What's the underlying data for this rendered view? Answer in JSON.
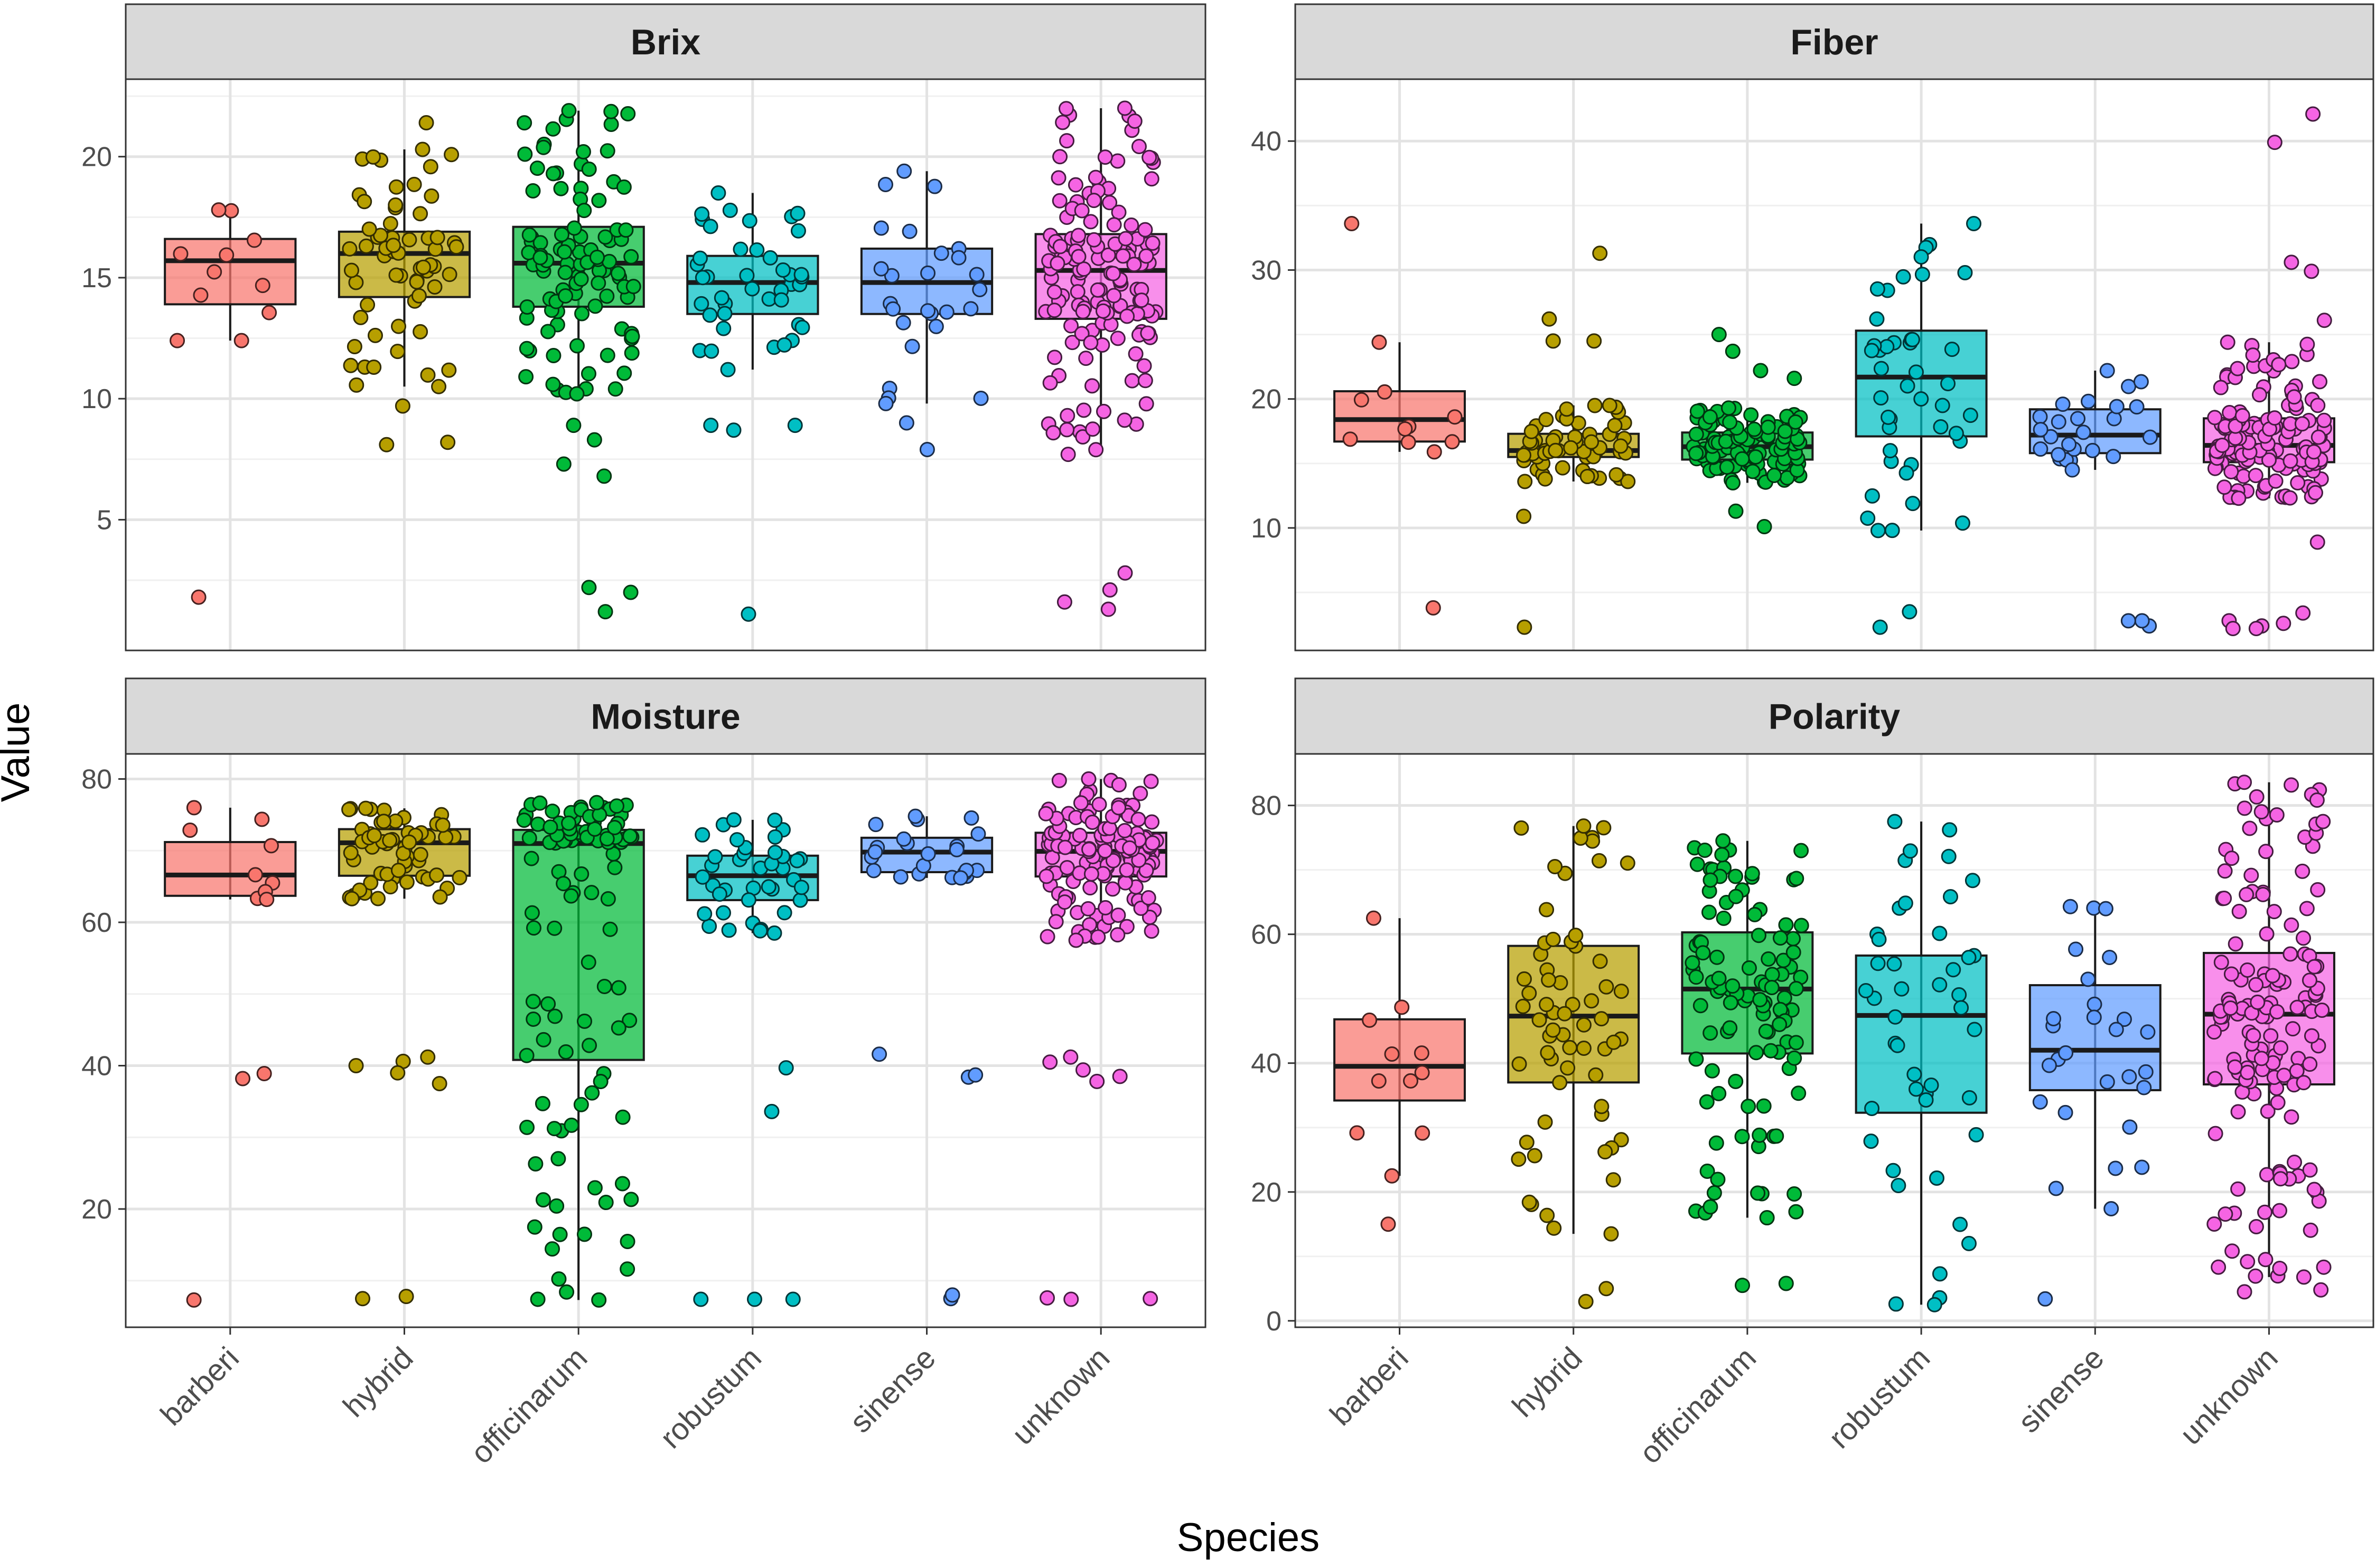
{
  "chart_data": {
    "type": "box",
    "title": "",
    "xlabel": "Species",
    "ylabel": "Value",
    "categories": [
      "barberi",
      "hybrid",
      "officinarum",
      "robustum",
      "sinense",
      "unknown"
    ],
    "colors": {
      "barberi": "#F8766D",
      "hybrid": "#B79F00",
      "officinarum": "#00BA38",
      "robustum": "#00BFC4",
      "sinense": "#619CFF",
      "unknown": "#F564E3"
    },
    "panels": [
      {
        "name": "Brix",
        "ylim": [
          -0.4,
          23.2
        ],
        "yticks": [
          5,
          10,
          15,
          20
        ],
        "stats": {
          "barberi": {
            "q1": 13.9,
            "median": 15.7,
            "q3": 16.6,
            "whisker_low": 12.4,
            "whisker_high": 17.8,
            "n": 12,
            "outliers": [
              1.8
            ]
          },
          "hybrid": {
            "q1": 14.2,
            "median": 16.0,
            "q3": 16.9,
            "whisker_low": 10.5,
            "whisker_high": 20.3,
            "n": 65,
            "outliers": [
              9.7,
              8.1,
              8.2,
              21.4
            ]
          },
          "officinarum": {
            "q1": 13.8,
            "median": 15.6,
            "q3": 17.1,
            "whisker_low": 10.2,
            "whisker_high": 21.9,
            "n": 110,
            "outliers": [
              8.3,
              7.3,
              8.9,
              6.8,
              2.2,
              2.0,
              1.2
            ]
          },
          "robustum": {
            "q1": 13.5,
            "median": 14.8,
            "q3": 15.9,
            "whisker_low": 11.2,
            "whisker_high": 18.5,
            "n": 45,
            "outliers": [
              8.9,
              8.9,
              8.7,
              1.1
            ]
          },
          "sinense": {
            "q1": 13.5,
            "median": 14.8,
            "q3": 16.2,
            "whisker_low": 9.8,
            "whisker_high": 19.4,
            "n": 28,
            "outliers": [
              9.0,
              7.9
            ]
          },
          "unknown": {
            "q1": 13.3,
            "median": 15.3,
            "q3": 16.8,
            "whisker_low": 7.7,
            "whisker_high": 22.0,
            "n": 150,
            "outliers": [
              2.8,
              2.1,
              1.6,
              1.3
            ]
          }
        }
      },
      {
        "name": "Fiber",
        "ylim": [
          0.5,
          44.8
        ],
        "yticks": [
          10,
          20,
          30,
          40
        ],
        "stats": {
          "barberi": {
            "q1": 16.7,
            "median": 18.4,
            "q3": 20.6,
            "whisker_low": 15.9,
            "whisker_high": 24.4,
            "n": 12,
            "outliers": [
              33.6,
              3.8
            ]
          },
          "hybrid": {
            "q1": 15.5,
            "median": 16.0,
            "q3": 17.3,
            "whisker_low": 13.6,
            "whisker_high": 19.5,
            "n": 65,
            "outliers": [
              31.3,
              26.2,
              24.5,
              24.5,
              10.9,
              2.3
            ]
          },
          "officinarum": {
            "q1": 15.3,
            "median": 16.3,
            "q3": 17.4,
            "whisker_low": 13.5,
            "whisker_high": 19.3,
            "n": 110,
            "outliers": [
              25.0,
              23.7,
              22.2,
              21.6,
              10.1,
              11.3
            ]
          },
          "robustum": {
            "q1": 17.1,
            "median": 21.7,
            "q3": 25.3,
            "whisker_low": 9.8,
            "whisker_high": 33.6,
            "n": 45,
            "outliers": [
              2.3,
              3.5
            ]
          },
          "sinense": {
            "q1": 15.8,
            "median": 17.2,
            "q3": 19.2,
            "whisker_low": 14.5,
            "whisker_high": 22.2,
            "n": 28,
            "outliers": [
              2.4,
              2.8,
              2.8
            ]
          },
          "unknown": {
            "q1": 15.1,
            "median": 16.4,
            "q3": 18.5,
            "whisker_low": 12.3,
            "whisker_high": 24.4,
            "n": 150,
            "outliers": [
              42.1,
              39.9,
              30.6,
              29.9,
              26.1,
              8.9,
              3.4,
              2.8,
              2.6,
              2.4,
              2.2,
              2.2
            ]
          }
        }
      },
      {
        "name": "Moisture",
        "ylim": [
          3.5,
          83.5
        ],
        "yticks": [
          20,
          40,
          60,
          80
        ],
        "stats": {
          "barberi": {
            "q1": 63.7,
            "median": 66.6,
            "q3": 71.2,
            "whisker_low": 63.2,
            "whisker_high": 76.0,
            "n": 12,
            "outliers": [
              38.9,
              38.2,
              7.3
            ]
          },
          "hybrid": {
            "q1": 66.5,
            "median": 71.1,
            "q3": 73.0,
            "whisker_low": 63.3,
            "whisker_high": 75.9,
            "n": 65,
            "outliers": [
              41.2,
              40.6,
              40.0,
              39.0,
              37.5,
              7.5,
              7.8
            ]
          },
          "officinarum": {
            "q1": 40.8,
            "median": 71.0,
            "q3": 72.9,
            "whisker_low": 7.3,
            "whisker_high": 76.7,
            "n": 110,
            "outliers": []
          },
          "robustum": {
            "q1": 63.1,
            "median": 66.5,
            "q3": 69.3,
            "whisker_low": 58.5,
            "whisker_high": 74.3,
            "n": 45,
            "outliers": [
              39.7,
              33.6,
              7.4,
              7.4,
              7.4
            ]
          },
          "sinense": {
            "q1": 67.0,
            "median": 69.8,
            "q3": 71.8,
            "whisker_low": 66.2,
            "whisker_high": 74.8,
            "n": 28,
            "outliers": [
              41.6,
              38.4,
              38.7,
              7.5,
              8.0
            ]
          },
          "unknown": {
            "q1": 66.4,
            "median": 69.9,
            "q3": 72.5,
            "whisker_low": 57.5,
            "whisker_high": 80.0,
            "n": 150,
            "outliers": [
              41.2,
              40.5,
              39.4,
              38.5,
              37.8,
              7.5,
              7.6,
              7.4
            ]
          }
        }
      },
      {
        "name": "Polarity",
        "ylim": [
          -1.0,
          88.0
        ],
        "yticks": [
          0,
          20,
          40,
          60,
          80
        ],
        "stats": {
          "barberi": {
            "q1": 34.2,
            "median": 39.5,
            "q3": 46.8,
            "whisker_low": 22.5,
            "whisker_high": 62.5,
            "n": 12,
            "outliers": [
              15.0
            ]
          },
          "hybrid": {
            "q1": 37.0,
            "median": 47.3,
            "q3": 58.2,
            "whisker_low": 13.5,
            "whisker_high": 76.8,
            "n": 65,
            "outliers": [
              5.0,
              3.0
            ]
          },
          "officinarum": {
            "q1": 41.5,
            "median": 51.5,
            "q3": 60.3,
            "whisker_low": 16.0,
            "whisker_high": 74.5,
            "n": 110,
            "outliers": [
              5.8,
              5.5
            ]
          },
          "robustum": {
            "q1": 32.3,
            "median": 47.4,
            "q3": 56.7,
            "whisker_low": 2.5,
            "whisker_high": 77.5,
            "n": 45,
            "outliers": []
          },
          "sinense": {
            "q1": 35.8,
            "median": 42.0,
            "q3": 52.1,
            "whisker_low": 17.4,
            "whisker_high": 64.3,
            "n": 28,
            "outliers": [
              3.4
            ]
          },
          "unknown": {
            "q1": 36.7,
            "median": 47.6,
            "q3": 57.1,
            "whisker_low": 6.8,
            "whisker_high": 83.6,
            "n": 150,
            "outliers": [
              4.5,
              4.8
            ]
          }
        }
      }
    ]
  }
}
